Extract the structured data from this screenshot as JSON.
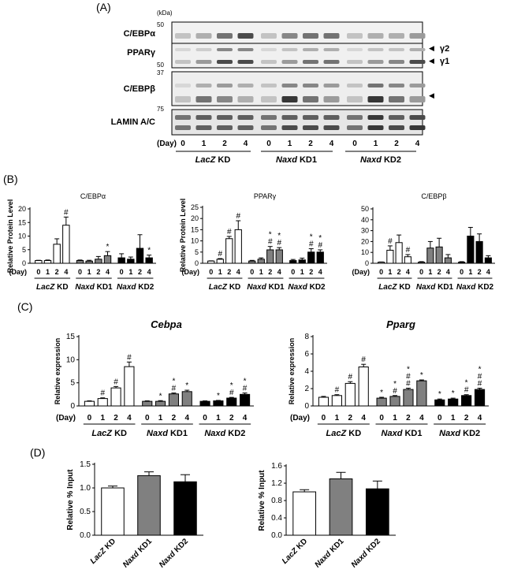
{
  "panels": {
    "A": "(A)",
    "B": "(B)",
    "C": "(C)",
    "D": "(D)"
  },
  "blot": {
    "kda_label": "(kDa)",
    "rows": [
      {
        "label": "C/EBPα",
        "markers": [
          "50"
        ]
      },
      {
        "label": "PPARγ",
        "markers": [
          "50"
        ],
        "arrows": [
          "γ2",
          "γ1"
        ]
      },
      {
        "label": "C/EBPβ",
        "markers": [
          "37"
        ],
        "arrows": [
          ""
        ]
      },
      {
        "label": "LAMIN A/C",
        "markers": [
          "75"
        ]
      }
    ],
    "day_label": "(Day)",
    "days": [
      "0",
      "1",
      "2",
      "4",
      "0",
      "1",
      "2",
      "4",
      "0",
      "1",
      "2",
      "4"
    ],
    "groups": [
      {
        "name": "LacZ",
        "suffix": " KD"
      },
      {
        "name": "Naxd",
        "suffix": " KD1"
      },
      {
        "name": "Naxd",
        "suffix": " KD2"
      }
    ]
  },
  "colors": {
    "lacz": "#ffffff",
    "kd1": "#808080",
    "kd2": "#000000"
  },
  "chart_data": [
    {
      "panel": "B",
      "type": "bar",
      "title": "C/EBPα",
      "ylabel": "Relative Protein Level",
      "ylim": [
        0,
        20
      ],
      "yticks": [
        0,
        5,
        10,
        15,
        20
      ],
      "x_title": "(Day)",
      "categories": [
        "0",
        "1",
        "2",
        "4",
        "0",
        "1",
        "2",
        "4",
        "0",
        "1",
        "2",
        "4"
      ],
      "groups": [
        "LacZ KD",
        "Naxd KD1",
        "Naxd KD2"
      ],
      "values": [
        1,
        1,
        7,
        14,
        1,
        0.8,
        1.5,
        2.8,
        2,
        1.5,
        5.5,
        2
      ],
      "errors": [
        0.1,
        0.2,
        2,
        3,
        0.2,
        0.3,
        1,
        1.5,
        1.5,
        0.8,
        5,
        1
      ],
      "marks": [
        "",
        "",
        "",
        "#",
        "",
        "",
        "",
        "*",
        "",
        "",
        "",
        "*"
      ]
    },
    {
      "panel": "B",
      "type": "bar",
      "title": "PPARγ",
      "ylabel": "Relative Protein Level",
      "ylim": [
        0,
        25
      ],
      "yticks": [
        0,
        5,
        10,
        15,
        20,
        25
      ],
      "x_title": "(Day)",
      "categories": [
        "0",
        "1",
        "2",
        "4",
        "0",
        "1",
        "2",
        "4",
        "0",
        "1",
        "2",
        "4"
      ],
      "groups": [
        "LacZ KD",
        "Naxd KD1",
        "Naxd KD2"
      ],
      "values": [
        1,
        1.8,
        11,
        15,
        1,
        1.8,
        6,
        6,
        1.2,
        1.5,
        5,
        5
      ],
      "errors": [
        0.1,
        0.3,
        1,
        4,
        0.3,
        0.6,
        1.5,
        1,
        0.5,
        0.8,
        1.5,
        1
      ],
      "marks": [
        "",
        "#",
        "#",
        "#",
        "",
        "",
        "*\n#",
        "*\n#",
        "",
        "",
        "*\n#",
        "*\n#"
      ]
    },
    {
      "panel": "B",
      "type": "bar",
      "title": "C/EBPβ",
      "ylabel": "",
      "ylim": [
        0,
        50
      ],
      "yticks": [
        0,
        10,
        20,
        30,
        40,
        50
      ],
      "x_title": "(Day)",
      "categories": [
        "0",
        "1",
        "2",
        "4",
        "0",
        "1",
        "2",
        "4",
        "0",
        "1",
        "2",
        "4"
      ],
      "groups": [
        "LacZ KD",
        "Naxd KD1",
        "Naxd KD2"
      ],
      "values": [
        1,
        12,
        19,
        6,
        1,
        14,
        15,
        5,
        1,
        25,
        20,
        5
      ],
      "errors": [
        0.2,
        4,
        7,
        2,
        0.5,
        6,
        8,
        3,
        0.5,
        8,
        7,
        2
      ],
      "marks": [
        "",
        "#",
        "",
        "#",
        "",
        "",
        "",
        "",
        "",
        "",
        "",
        ""
      ]
    },
    {
      "panel": "C",
      "type": "bar",
      "title": "Cebpa",
      "ylabel": "Relative expression",
      "ylim": [
        0,
        15
      ],
      "yticks": [
        0,
        5,
        10,
        15
      ],
      "x_title": "(Day)",
      "categories": [
        "0",
        "1",
        "2",
        "4",
        "0",
        "1",
        "2",
        "4",
        "0",
        "1",
        "2",
        "4"
      ],
      "groups": [
        "LacZ KD",
        "Naxd KD1",
        "Naxd KD2"
      ],
      "values": [
        1,
        1.6,
        3.9,
        8.5,
        1,
        1,
        2.6,
        3.1,
        1,
        1.1,
        1.7,
        2.5
      ],
      "errors": [
        0.1,
        0.15,
        0.3,
        1,
        0.1,
        0.15,
        0.2,
        0.3,
        0.1,
        0.1,
        0.15,
        0.3
      ],
      "marks": [
        "",
        "#",
        "#",
        "#",
        "",
        "*",
        "*\n#",
        "*",
        "",
        "*",
        "*\n#",
        "*\n#"
      ]
    },
    {
      "panel": "C",
      "type": "bar",
      "title": "Pparg",
      "ylabel": "Relative expression",
      "ylim": [
        0,
        8
      ],
      "yticks": [
        0,
        2,
        4,
        6,
        8
      ],
      "x_title": "(Day)",
      "categories": [
        "0",
        "1",
        "2",
        "4",
        "0",
        "1",
        "2",
        "4",
        "0",
        "1",
        "2",
        "4"
      ],
      "groups": [
        "LacZ KD",
        "Naxd KD1",
        "Naxd KD2"
      ],
      "values": [
        1,
        1.2,
        2.6,
        4.5,
        0.9,
        1.1,
        1.9,
        2.9,
        0.7,
        0.8,
        1.2,
        1.9
      ],
      "errors": [
        0.1,
        0.1,
        0.2,
        0.3,
        0.1,
        0.1,
        0.15,
        0.1,
        0.1,
        0.1,
        0.1,
        0.15
      ],
      "marks": [
        "",
        "#",
        "#",
        "#",
        "*",
        "*\n#",
        "*\n#\n#",
        "*",
        "*",
        "*",
        "*\n#",
        "*\n#\n#"
      ]
    },
    {
      "panel": "D",
      "type": "bar",
      "title": "",
      "ylabel": "Relative % Input",
      "ylim": [
        0,
        1.5
      ],
      "yticks": [
        "0.0",
        "0.5",
        "1.0",
        "1.5"
      ],
      "categories": [
        "LacZ KD",
        "Naxd KD1",
        "Naxd KD2"
      ],
      "values": [
        1.0,
        1.26,
        1.13
      ],
      "errors": [
        0.04,
        0.08,
        0.15
      ],
      "colors": [
        "#ffffff",
        "#808080",
        "#000000"
      ]
    },
    {
      "panel": "D",
      "type": "bar",
      "title": "",
      "ylabel": "Relative % Input",
      "ylim": [
        0,
        1.6
      ],
      "yticks": [
        "0.0",
        "0.4",
        "0.8",
        "1.2",
        "1.6"
      ],
      "categories": [
        "LacZ KD",
        "Naxd KD1",
        "Naxd KD2"
      ],
      "values": [
        1.0,
        1.3,
        1.07
      ],
      "errors": [
        0.05,
        0.15,
        0.18
      ],
      "colors": [
        "#ffffff",
        "#808080",
        "#000000"
      ]
    }
  ]
}
